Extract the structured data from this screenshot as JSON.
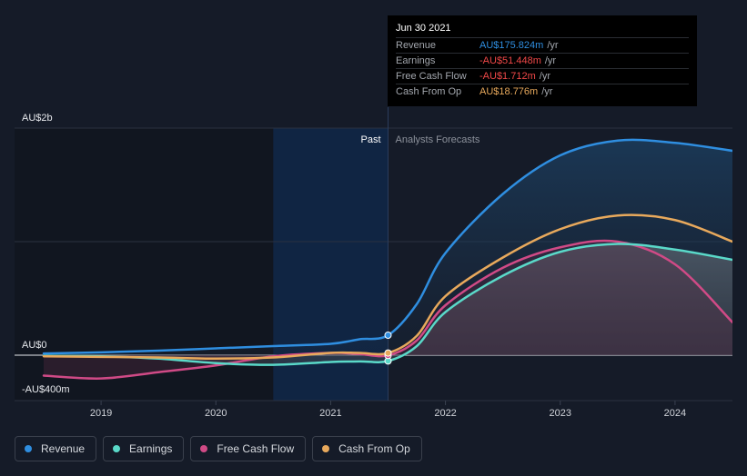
{
  "tooltip": {
    "date": "Jun 30 2021",
    "rows": [
      {
        "label": "Revenue",
        "value": "AU$175.824m",
        "unit": "/yr",
        "color": "#2f8ee0"
      },
      {
        "label": "Earnings",
        "value": "-AU$51.448m",
        "unit": "/yr",
        "color": "#f04848"
      },
      {
        "label": "Free Cash Flow",
        "value": "-AU$1.712m",
        "unit": "/yr",
        "color": "#f04848"
      },
      {
        "label": "Cash From Op",
        "value": "AU$18.776m",
        "unit": "/yr",
        "color": "#e8a95c"
      }
    ]
  },
  "legend": [
    {
      "label": "Revenue",
      "color": "#2f8ee0"
    },
    {
      "label": "Earnings",
      "color": "#5ad9c9"
    },
    {
      "label": "Free Cash Flow",
      "color": "#d04a86"
    },
    {
      "label": "Cash From Op",
      "color": "#e8a95c"
    }
  ],
  "chart_data": {
    "type": "line",
    "title": "",
    "xlabel": "",
    "ylabel": "",
    "ylim": [
      -400,
      2000
    ],
    "xlim": [
      2018.5,
      2024.5
    ],
    "y_tick_labels": [
      "AU$2b",
      "AU$0",
      "-AU$400m"
    ],
    "x_ticks": [
      "2019",
      "2020",
      "2021",
      "2022",
      "2023",
      "2024"
    ],
    "x_tick_values": [
      2019,
      2020,
      2021,
      2022,
      2023,
      2024
    ],
    "segments": {
      "past_label": "Past",
      "forecast_label": "Analysts Forecasts",
      "divider": 2021.5
    },
    "highlight_start": 2020.5,
    "series": [
      {
        "name": "Revenue",
        "color": "#2f8ee0",
        "x": [
          2018.5,
          2019.0,
          2019.5,
          2020.0,
          2020.5,
          2021.0,
          2021.25,
          2021.5,
          2021.75,
          2022.0,
          2022.5,
          2023.0,
          2023.5,
          2024.0,
          2024.5
        ],
        "values": [
          15,
          25,
          40,
          60,
          80,
          100,
          140,
          176,
          450,
          900,
          1420,
          1760,
          1890,
          1870,
          1800
        ]
      },
      {
        "name": "Earnings",
        "color": "#5ad9c9",
        "x": [
          2018.5,
          2019.0,
          2019.5,
          2020.0,
          2020.5,
          2021.0,
          2021.25,
          2021.5,
          2021.75,
          2022.0,
          2022.5,
          2023.0,
          2023.5,
          2024.0,
          2024.5
        ],
        "values": [
          -5,
          -10,
          -30,
          -70,
          -85,
          -60,
          -55,
          -51,
          80,
          380,
          700,
          910,
          980,
          930,
          840
        ]
      },
      {
        "name": "Free Cash Flow",
        "color": "#d04a86",
        "x": [
          2018.5,
          2019.0,
          2019.5,
          2020.0,
          2020.5,
          2021.0,
          2021.25,
          2021.5,
          2021.75,
          2022.0,
          2022.5,
          2023.0,
          2023.5,
          2024.0,
          2024.5
        ],
        "values": [
          -180,
          -205,
          -150,
          -90,
          -10,
          20,
          10,
          -2,
          130,
          440,
          770,
          950,
          1000,
          800,
          290
        ]
      },
      {
        "name": "Cash From Op",
        "color": "#e8a95c",
        "x": [
          2018.5,
          2019.0,
          2019.5,
          2020.0,
          2020.5,
          2021.0,
          2021.25,
          2021.5,
          2021.75,
          2022.0,
          2022.5,
          2023.0,
          2023.5,
          2024.0,
          2024.5
        ],
        "values": [
          -10,
          -15,
          -20,
          -30,
          -20,
          20,
          20,
          19,
          170,
          520,
          860,
          1110,
          1230,
          1190,
          1000
        ]
      }
    ]
  }
}
